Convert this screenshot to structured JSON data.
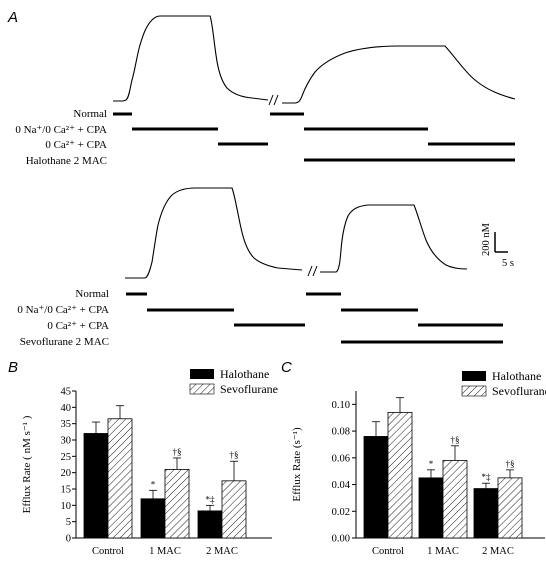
{
  "panel_a": {
    "letter": "A",
    "top": {
      "rows": [
        {
          "label": "Normal"
        },
        {
          "label": "0 Na⁺/0 Ca²⁺ + CPA"
        },
        {
          "label": "0 Ca²⁺ + CPA"
        },
        {
          "label": "Halothane 2 MAC"
        }
      ]
    },
    "bottom": {
      "rows": [
        {
          "label": "Normal"
        },
        {
          "label": "0 Na⁺/0 Ca²⁺ + CPA"
        },
        {
          "label": "0 Ca²⁺ + CPA"
        },
        {
          "label": "Sevoflurane 2 MAC"
        }
      ]
    },
    "scale_bar": {
      "y_label": "200 nM",
      "x_label": "5 s"
    }
  },
  "legend": {
    "halothane": "Halothane",
    "sevoflurane": "Sevoflurane",
    "halothane_color": "#000000",
    "sevoflurane_fill": "hatched"
  },
  "chart_data": [
    {
      "panel": "B",
      "type": "bar",
      "ylabel": "Efflux Rate ( nM s⁻¹ )",
      "ylim": [
        0,
        45
      ],
      "yticks": [
        "0",
        "5",
        "10",
        "15",
        "20",
        "25",
        "30",
        "35",
        "40",
        "45"
      ],
      "categories": [
        "Control",
        "1 MAC",
        "2 MAC"
      ],
      "series": [
        {
          "name": "Halothane",
          "values": [
            32,
            12,
            8.3
          ],
          "errors": [
            3.5,
            2.6,
            1.7
          ],
          "marks": [
            "",
            "*",
            "*‡"
          ]
        },
        {
          "name": "Sevoflurane",
          "values": [
            36.5,
            21,
            17.5
          ],
          "errors": [
            4,
            3.5,
            6
          ],
          "marks": [
            "",
            "†§",
            "†§"
          ]
        }
      ]
    },
    {
      "panel": "C",
      "type": "bar",
      "ylabel": "Efflux Rate (s⁻¹)",
      "ylim": [
        0,
        0.11
      ],
      "yticks": [
        "0.00",
        "0.02",
        "0.04",
        "0.06",
        "0.08",
        "0.10"
      ],
      "categories": [
        "Control",
        "1 MAC",
        "2 MAC"
      ],
      "series": [
        {
          "name": "Halothane",
          "values": [
            0.076,
            0.045,
            0.037
          ],
          "errors": [
            0.011,
            0.006,
            0.004
          ],
          "marks": [
            "",
            "*",
            "*‡"
          ]
        },
        {
          "name": "Sevoflurane",
          "values": [
            0.094,
            0.058,
            0.045
          ],
          "errors": [
            0.011,
            0.011,
            0.006
          ],
          "marks": [
            "",
            "†§",
            "†§"
          ]
        }
      ]
    }
  ]
}
